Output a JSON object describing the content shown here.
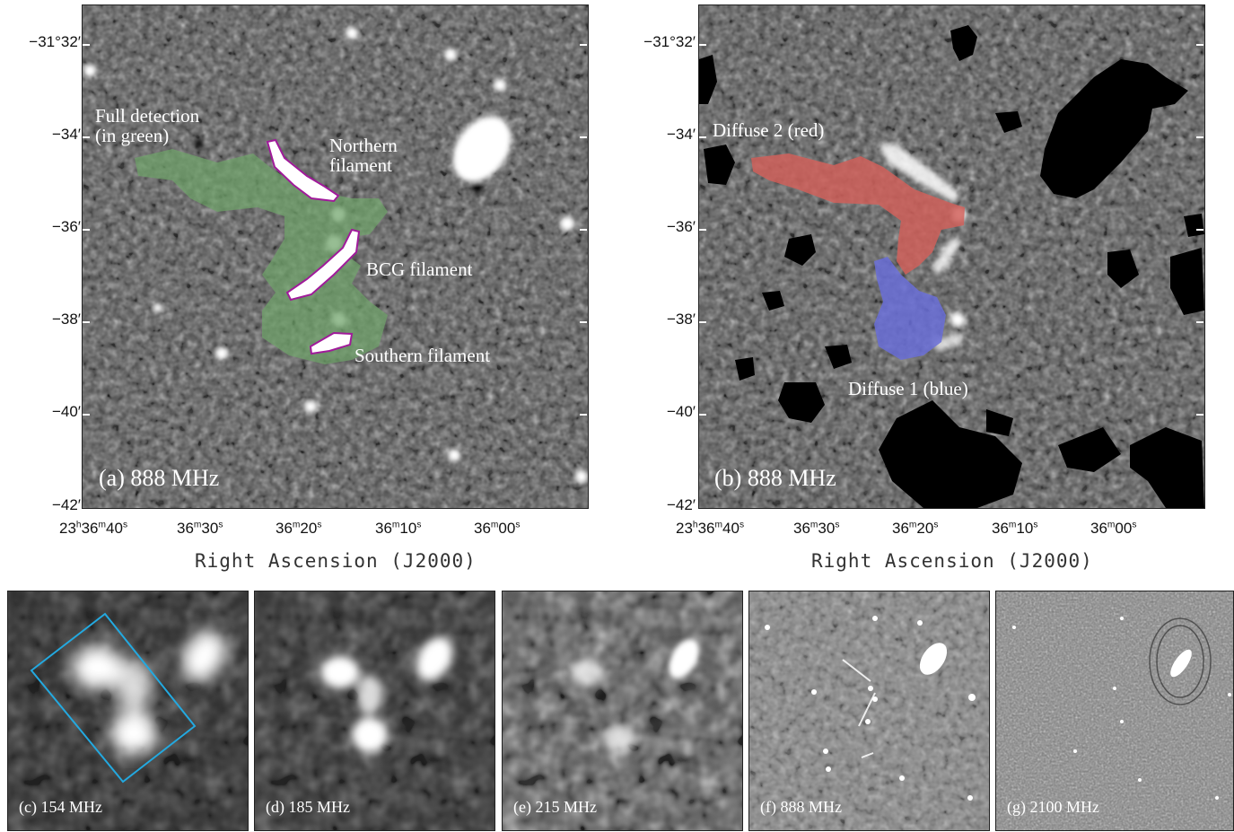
{
  "panel_a": {
    "label": "(a) 888 MHz",
    "annotations": {
      "full_detection_1": "Full detection",
      "full_detection_2": "(in green)",
      "northern_1": "Northern",
      "northern_2": "filament",
      "bcg": "BCG filament",
      "southern": "Southern filament"
    }
  },
  "panel_b": {
    "label": "(b) 888 MHz",
    "annotations": {
      "diffuse2": "Diffuse 2 (red)",
      "diffuse1": "Diffuse 1 (blue)"
    }
  },
  "y_ticks": [
    "−31°32′",
    "−34′",
    "−36′",
    "−38′",
    "−40′",
    "−42′"
  ],
  "x_ticks": {
    "t1_h": "23",
    "t1_m": "36",
    "t1_s": "40",
    "t2_m": "36",
    "t2_s": "30",
    "t3_m": "36",
    "t3_s": "20",
    "t4_m": "36",
    "t4_s": "10",
    "t5_m": "36",
    "t5_s": "00",
    "h": "h",
    "m": "m",
    "s": "s"
  },
  "x_title": "Right Ascension (J2000)",
  "bottom_panels": [
    {
      "label": "(c) 154 MHz"
    },
    {
      "label": "(d) 185 MHz"
    },
    {
      "label": "(e) 215 MHz"
    },
    {
      "label": "(f) 888 MHz"
    },
    {
      "label": "(g) 2100 MHz"
    }
  ],
  "colors": {
    "green_region": "#6fa36a",
    "red_region": "#d0605a",
    "blue_region": "#6a6fd8",
    "contour": "#a01a9a",
    "box": "#23a9e0"
  }
}
